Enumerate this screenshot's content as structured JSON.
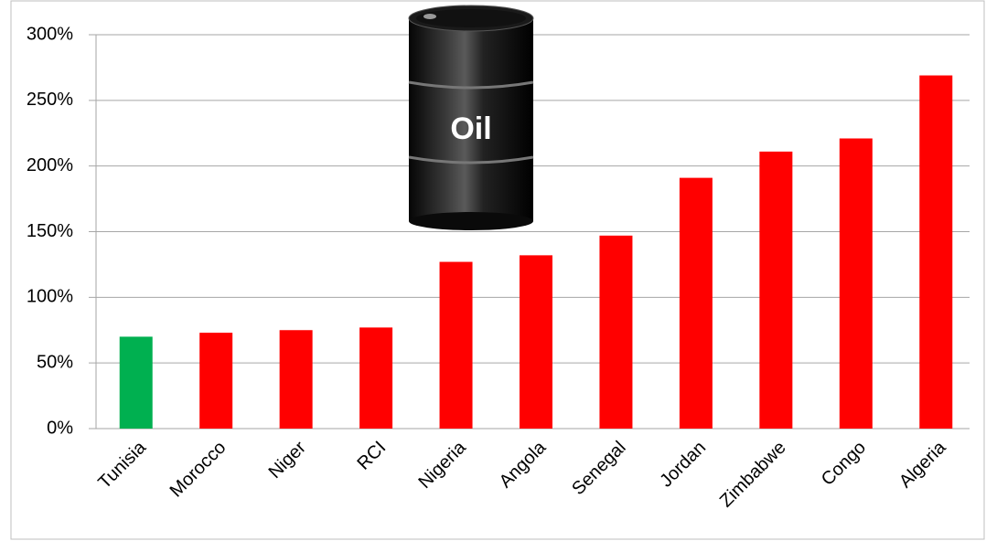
{
  "chart_data": {
    "type": "bar",
    "categories": [
      "Tunisia",
      "Morocco",
      "Niger",
      "RCI",
      "Nigeria",
      "Angola",
      "Senegal",
      "Jordan",
      "Zimbabwe",
      "Congo",
      "Algeria"
    ],
    "values": [
      70,
      73,
      75,
      77,
      127,
      132,
      147,
      191,
      211,
      221,
      269
    ],
    "colors": [
      "#00b050",
      "#ff0000",
      "#ff0000",
      "#ff0000",
      "#ff0000",
      "#ff0000",
      "#ff0000",
      "#ff0000",
      "#ff0000",
      "#ff0000",
      "#ff0000"
    ],
    "ylim": [
      0,
      300
    ],
    "yticks": [
      {
        "value": 0,
        "label": "0%"
      },
      {
        "value": 50,
        "label": "50%"
      },
      {
        "value": 100,
        "label": "100%"
      },
      {
        "value": 150,
        "label": "150%"
      },
      {
        "value": 200,
        "label": "200%"
      },
      {
        "value": 250,
        "label": "250%"
      },
      {
        "value": 300,
        "label": "300%"
      }
    ],
    "grid": true,
    "image_label": "Oil"
  }
}
